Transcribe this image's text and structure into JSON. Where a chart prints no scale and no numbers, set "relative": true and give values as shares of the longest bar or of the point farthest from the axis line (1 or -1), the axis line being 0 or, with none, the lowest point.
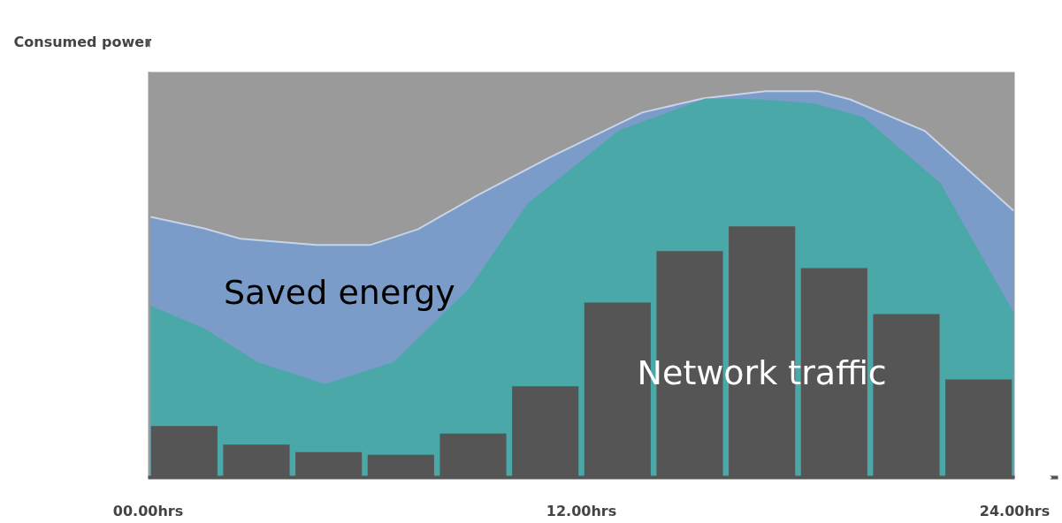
{
  "chart_data": {
    "type": "area",
    "relative": true,
    "ylabel": "Consumed power",
    "xlim": [
      0,
      24
    ],
    "xticks": [
      {
        "value": 0,
        "label": "00.00hrs"
      },
      {
        "value": 12,
        "label": "12.00hrs"
      },
      {
        "value": 24,
        "label": "24.00hrs"
      }
    ],
    "grid": false,
    "series": [
      {
        "name": "Saved energy",
        "color": "#7b9cc8",
        "x": [
          0.07,
          1.55,
          2.57,
          4.66,
          6.15,
          7.48,
          9.14,
          11.1,
          13.68,
          15.39,
          17.1,
          18.57,
          19.44,
          21.52,
          23.97
        ],
        "values": [
          0.675,
          0.645,
          0.618,
          0.602,
          0.602,
          0.643,
          0.732,
          0.828,
          0.945,
          0.982,
          1,
          1,
          0.979,
          0.897,
          0.691
        ]
      },
      {
        "color": "#4aa8a8",
        "x": [
          0.07,
          1.55,
          3.01,
          4.9,
          6.81,
          8.9,
          10.54,
          13.06,
          15.44,
          16.99,
          18.46,
          19.8,
          21.93,
          23.97
        ],
        "values": [
          0.442,
          0.384,
          0.297,
          0.24,
          0.297,
          0.487,
          0.709,
          0.897,
          0.979,
          0.977,
          0.966,
          0.931,
          0.76,
          0.423
        ]
      },
      {
        "name": "Network traffic",
        "type": "bar",
        "color": "#555555",
        "x": [
          1,
          3,
          5,
          7,
          9,
          11,
          13,
          15,
          17,
          19,
          21,
          23
        ],
        "values": [
          0.133,
          0.085,
          0.066,
          0.059,
          0.114,
          0.236,
          0.453,
          0.586,
          0.65,
          0.542,
          0.423,
          0.254
        ]
      }
    ]
  }
}
